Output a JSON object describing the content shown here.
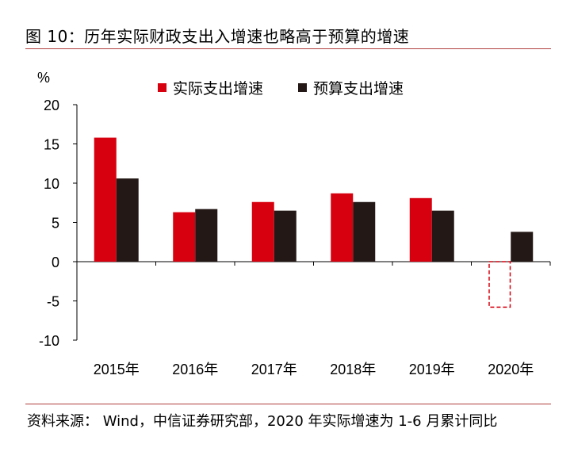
{
  "figure": {
    "title": "图 10：历年实际财政支出入增速也略高于预算的增速",
    "source": "资料来源： Wind，中信证券研究部，2020 年实际增速为 1-6 月累计同比"
  },
  "chart_data": {
    "type": "bar",
    "categories": [
      "2015年",
      "2016年",
      "2017年",
      "2018年",
      "2019年",
      "2020年"
    ],
    "series": [
      {
        "name": "实际支出增速",
        "color": "#d7000f",
        "values": [
          15.8,
          6.3,
          7.6,
          8.7,
          8.1,
          -5.8
        ],
        "dashed_last": true
      },
      {
        "name": "预算支出增速",
        "color": "#231815",
        "values": [
          10.6,
          6.7,
          6.5,
          7.6,
          6.5,
          3.8
        ]
      }
    ],
    "ylabel": "%",
    "ylim": [
      -10,
      20
    ],
    "yticks": [
      20,
      15,
      10,
      5,
      0,
      -5,
      -10
    ],
    "legend": "top",
    "grid": false
  }
}
